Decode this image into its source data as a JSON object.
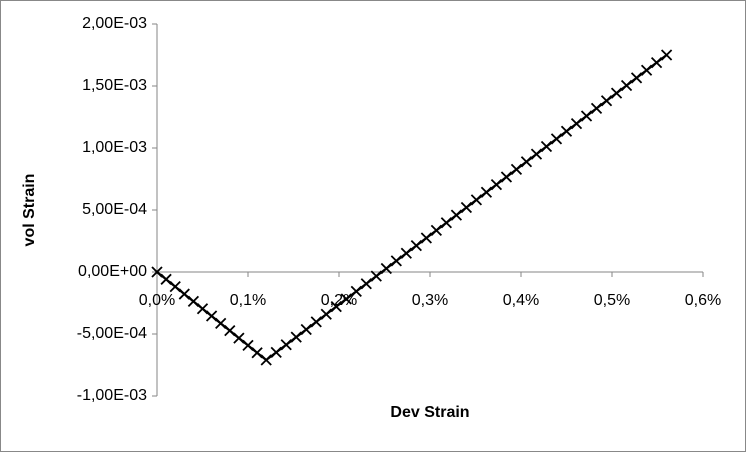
{
  "chart_data": {
    "type": "scatter",
    "x_label": "Dev Strain",
    "y_label": "vol Strain",
    "xlim": [
      0,
      0.6
    ],
    "xticks": [
      {
        "value": 0,
        "label": "0,0%"
      },
      {
        "value": 0.1,
        "label": "0,1%"
      },
      {
        "value": 0.2,
        "label": "0,2%"
      },
      {
        "value": 0.3,
        "label": "0,3%"
      },
      {
        "value": 0.4,
        "label": "0,4%"
      },
      {
        "value": 0.5,
        "label": "0,5%"
      },
      {
        "value": 0.6,
        "label": "0,6%"
      }
    ],
    "ylim": [
      -0.001,
      0.002
    ],
    "yticks": [
      {
        "value": -0.001,
        "label": "-1,00E-03"
      },
      {
        "value": -0.0005,
        "label": "-5,00E-04"
      },
      {
        "value": 0,
        "label": "0,00E+00"
      },
      {
        "value": 0.0005,
        "label": "5,00E-04"
      },
      {
        "value": 0.001,
        "label": "1,00E-03"
      },
      {
        "value": 0.0015,
        "label": "1,50E-03"
      },
      {
        "value": 0.002,
        "label": "2,00E-03"
      }
    ],
    "grid": false,
    "series": [
      {
        "color": "#000000",
        "marker": "x",
        "x": [
          0,
          0.01,
          0.02,
          0.03,
          0.04,
          0.05,
          0.06,
          0.07,
          0.08,
          0.09,
          0.1,
          0.11,
          0.12,
          0.131,
          0.142,
          0.153,
          0.164,
          0.175,
          0.186,
          0.197,
          0.208,
          0.219,
          0.23,
          0.241,
          0.252,
          0.263,
          0.274,
          0.285,
          0.296,
          0.307,
          0.318,
          0.329,
          0.34,
          0.351,
          0.362,
          0.373,
          0.384,
          0.395,
          0.406,
          0.417,
          0.428,
          0.439,
          0.45,
          0.461,
          0.472,
          0.483,
          0.494,
          0.505,
          0.516,
          0.527,
          0.538,
          0.549,
          0.56
        ],
        "values": [
          0,
          -5.9e-05,
          -0.000118,
          -0.000178,
          -0.000237,
          -0.000296,
          -0.000355,
          -0.000414,
          -0.000473,
          -0.000533,
          -0.000592,
          -0.000651,
          -0.00071,
          -0.0006485,
          -0.000587,
          -0.0005255,
          -0.000464,
          -0.0004025,
          -0.000341,
          -0.0002795,
          -0.000218,
          -0.0001565,
          -9.5e-05,
          -3.35e-05,
          2.8e-05,
          8.95e-05,
          0.000151,
          0.0002125,
          0.000274,
          0.0003355,
          0.000397,
          0.0004585,
          0.00052,
          0.0005815,
          0.000643,
          0.0007045,
          0.000766,
          0.0008275,
          0.000889,
          0.0009505,
          0.001012,
          0.0010735,
          0.001135,
          0.0011965,
          0.001258,
          0.0013195,
          0.001381,
          0.0014425,
          0.001504,
          0.0015655,
          0.001627,
          0.0016885,
          0.00175
        ]
      }
    ]
  }
}
